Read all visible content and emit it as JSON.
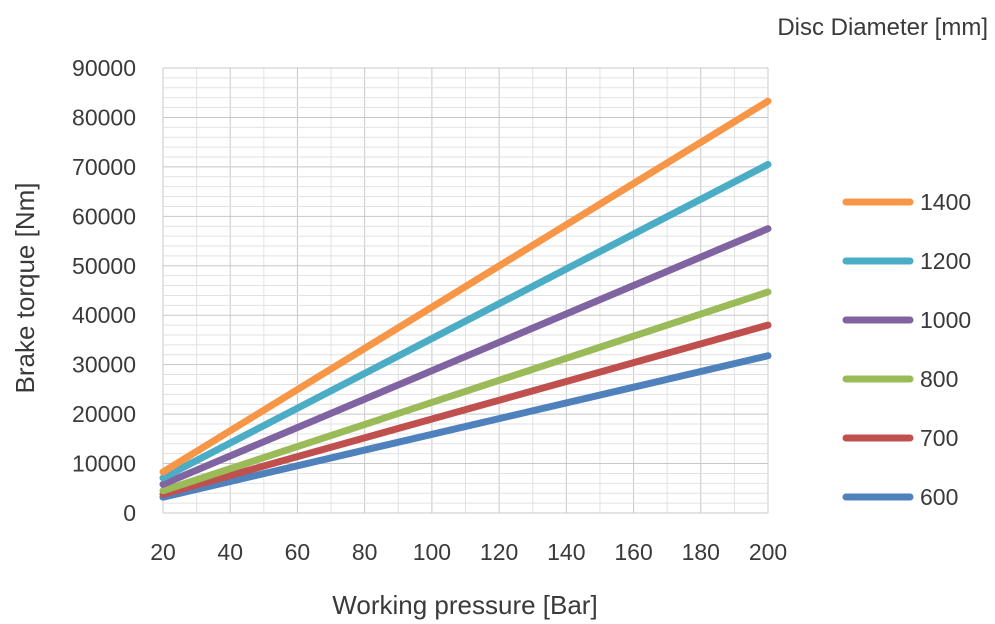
{
  "chart_data": {
    "type": "line",
    "title": "",
    "xlabel": "Working pressure [Bar]",
    "ylabel": "Brake torque [Nm]",
    "legend_title": "Disc Diameter [mm]",
    "legend_position": "right",
    "grid": true,
    "xlim": [
      20,
      200
    ],
    "ylim": [
      0,
      90000
    ],
    "x_ticks": [
      "20",
      "40",
      "60",
      "80",
      "100",
      "120",
      "140",
      "160",
      "180",
      "200"
    ],
    "y_ticks": [
      "0",
      "10000",
      "20000",
      "30000",
      "40000",
      "50000",
      "60000",
      "70000",
      "80000",
      "90000"
    ],
    "x": [
      20,
      200
    ],
    "series": [
      {
        "name": "1400",
        "color": "#f79646",
        "values": [
          8300,
          83300
        ]
      },
      {
        "name": "1200",
        "color": "#4bacc6",
        "values": [
          7100,
          70500
        ]
      },
      {
        "name": "1000",
        "color": "#8064a2",
        "values": [
          5800,
          57500
        ]
      },
      {
        "name": "800",
        "color": "#9bbb59",
        "values": [
          4500,
          44700
        ]
      },
      {
        "name": "700",
        "color": "#c0504d",
        "values": [
          3800,
          38000
        ]
      },
      {
        "name": "600",
        "color": "#4f81bd",
        "values": [
          3200,
          31800
        ]
      }
    ]
  }
}
